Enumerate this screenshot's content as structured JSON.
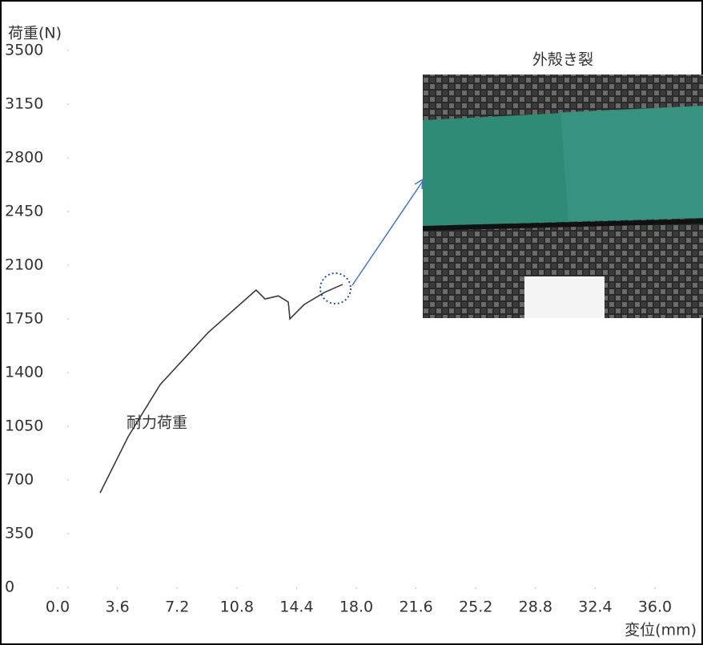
{
  "chart_data": {
    "type": "line",
    "y_label": "荷重(N)",
    "x_label": "変位(mm)",
    "annotation": "耐力荷重",
    "photo_caption": "外殻き裂",
    "x": [
      2.56,
      4.25,
      6.18,
      9.07,
      11.96,
      12.5,
      13.3,
      13.9,
      14.0,
      14.86,
      16.07,
      17.18
    ],
    "series": [
      {
        "name": "荷重",
        "color": "#3a3a3a",
        "values": [
          616,
          982,
          1322,
          1661,
          1938,
          1880,
          1900,
          1860,
          1750,
          1844,
          1922,
          1975
        ]
      }
    ],
    "xlim": [
      0,
      36
    ],
    "ylim": [
      0,
      3500
    ],
    "xticks": [
      {
        "value": 0,
        "label": "0.0"
      },
      3.6,
      7.2,
      10.8,
      14.4,
      {
        "value": 18,
        "label": "18.0"
      },
      21.6,
      25.2,
      28.8,
      32.4,
      {
        "value": 36,
        "label": "36.0"
      }
    ],
    "yticks": [
      0,
      350,
      700,
      1050,
      1400,
      1750,
      2100,
      2450,
      2800,
      3150,
      3500
    ],
    "grid": false
  }
}
